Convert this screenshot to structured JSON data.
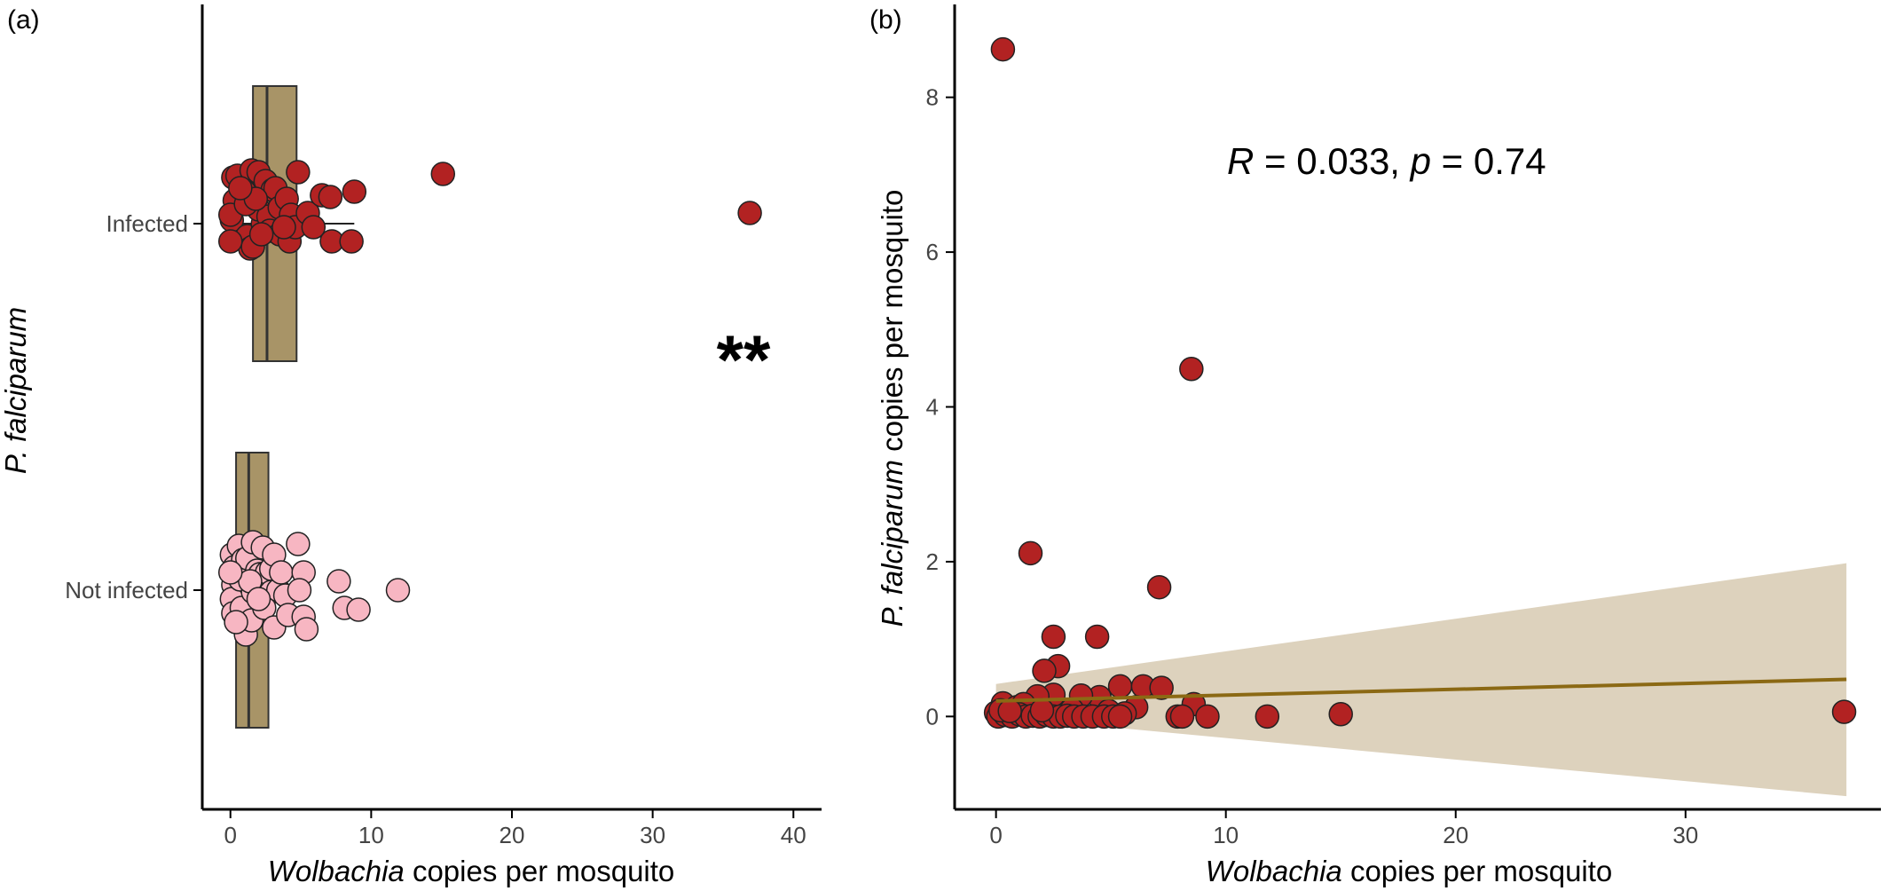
{
  "panel_a": {
    "label": "(a)",
    "xlabel_italic": "Wolbachia",
    "xlabel_rest": " copies per mosquito",
    "ylabel": "P. falciparum",
    "significance": "**"
  },
  "panel_b": {
    "label": "(b)",
    "xlabel_italic": "Wolbachia",
    "xlabel_rest": " copies per mosquito",
    "ylabel_italic": "P. falciparum",
    "ylabel_rest": " copies per mosquito",
    "annotation": {
      "r_symbol": "R",
      "r_text": " = 0.033, ",
      "p_symbol": "p",
      "p_text": " = 0.74"
    }
  },
  "colors": {
    "infected": "#b22222",
    "not_infected": "#f7b6c2",
    "box_fill": "#a89467",
    "regression_line": "#8b6914",
    "confidence_band": "#ddd2bd"
  },
  "chart_data": [
    {
      "type": "box-jitter",
      "orientation": "horizontal",
      "xlabel": "Wolbachia copies per mosquito",
      "ylabel": "P. falciparum",
      "xlim": [
        -2,
        42
      ],
      "xticks": [
        0,
        10,
        20,
        30,
        40
      ],
      "categories": [
        "Infected",
        "Not infected"
      ],
      "grid": false,
      "annotation": "**",
      "groups": [
        {
          "category": "Infected",
          "color": "#b22222",
          "box": {
            "q1": 1.6,
            "median": 2.6,
            "q3": 4.7,
            "whisker_low": 0,
            "whisker_high": 8.8
          },
          "points": [
            [
              0.2,
              0.26
            ],
            [
              0.3,
              0.13
            ],
            [
              0.5,
              0.27
            ],
            [
              0.1,
              0.02
            ],
            [
              0.0,
              0.05
            ],
            [
              1.0,
              0.18
            ],
            [
              1.5,
              0.3
            ],
            [
              1.2,
              -0.07
            ],
            [
              1.4,
              -0.14
            ],
            [
              1.6,
              -0.13
            ],
            [
              2.0,
              0.29
            ],
            [
              2.3,
              0.0
            ],
            [
              2.0,
              0.08
            ],
            [
              2.5,
              0.24
            ],
            [
              2.7,
              0.04
            ],
            [
              3.0,
              0.19
            ],
            [
              3.2,
              0.2
            ],
            [
              3.5,
              0.09
            ],
            [
              2.8,
              -0.04
            ],
            [
              3.5,
              -0.06
            ],
            [
              4.0,
              0.14
            ],
            [
              4.3,
              0.05
            ],
            [
              4.2,
              -0.1
            ],
            [
              4.6,
              -0.02
            ],
            [
              4.8,
              0.29
            ],
            [
              5.5,
              0.06
            ],
            [
              5.9,
              -0.02
            ],
            [
              6.5,
              0.16
            ],
            [
              7.1,
              0.15
            ],
            [
              7.2,
              -0.1
            ],
            [
              8.8,
              0.18
            ],
            [
              8.6,
              -0.1
            ],
            [
              1.1,
              0.11
            ],
            [
              1.8,
              0.14
            ],
            [
              0.0,
              -0.1
            ],
            [
              3.8,
              -0.02
            ],
            [
              2.2,
              -0.06
            ],
            [
              0.7,
              0.2
            ],
            [
              15.1,
              0.28
            ],
            [
              36.9,
              0.06
            ]
          ]
        },
        {
          "category": "Not infected",
          "color": "#f7b6c2",
          "box": {
            "q1": 0.4,
            "median": 1.3,
            "q3": 2.7,
            "whisker_low": 0,
            "whisker_high": 5.4
          },
          "points": [
            [
              0.1,
              0.2
            ],
            [
              0.3,
              0.13
            ],
            [
              0.2,
              0.03
            ],
            [
              0.1,
              -0.05
            ],
            [
              0.2,
              -0.13
            ],
            [
              0.6,
              0.25
            ],
            [
              0.9,
              0.17
            ],
            [
              0.7,
              0.06
            ],
            [
              0.8,
              -0.1
            ],
            [
              1.1,
              -0.25
            ],
            [
              1.2,
              0.18
            ],
            [
              1.6,
              0.27
            ],
            [
              1.9,
              0.11
            ],
            [
              1.6,
              -0.01
            ],
            [
              1.5,
              -0.17
            ],
            [
              2.1,
              0.09
            ],
            [
              2.3,
              0.24
            ],
            [
              2.6,
              0.1
            ],
            [
              2.9,
              0.12
            ],
            [
              3.1,
              0.2
            ],
            [
              2.9,
              -0.01
            ],
            [
              2.4,
              -0.1
            ],
            [
              3.1,
              -0.21
            ],
            [
              3.4,
              0.0
            ],
            [
              3.6,
              0.1
            ],
            [
              3.9,
              -0.03
            ],
            [
              4.1,
              -0.14
            ],
            [
              4.8,
              0.26
            ],
            [
              5.2,
              0.1
            ],
            [
              4.9,
              0.0
            ],
            [
              5.2,
              -0.15
            ],
            [
              5.4,
              -0.22
            ],
            [
              0.4,
              -0.18
            ],
            [
              1.4,
              0.05
            ],
            [
              7.7,
              0.05
            ],
            [
              8.1,
              -0.1
            ],
            [
              9.1,
              -0.11
            ],
            [
              11.9,
              0.0
            ],
            [
              0.0,
              0.1
            ],
            [
              2.0,
              -0.05
            ]
          ]
        }
      ]
    },
    {
      "type": "scatter",
      "xlabel": "Wolbachia copies per mosquito",
      "ylabel": "P. falciparum copies per mosquito",
      "xlim": [
        -1.8,
        38.5
      ],
      "ylim": [
        -1.2,
        9.2
      ],
      "xticks": [
        0,
        10,
        20,
        30
      ],
      "yticks": [
        0,
        2,
        4,
        6,
        8
      ],
      "grid": false,
      "annotation": "R = 0.033, p = 0.74",
      "points": [
        [
          0.3,
          8.62
        ],
        [
          8.5,
          4.49
        ],
        [
          1.5,
          2.11
        ],
        [
          7.1,
          1.67
        ],
        [
          2.5,
          1.03
        ],
        [
          4.4,
          1.03
        ],
        [
          2.7,
          0.65
        ],
        [
          2.1,
          0.59
        ],
        [
          5.4,
          0.39
        ],
        [
          6.4,
          0.39
        ],
        [
          7.2,
          0.37
        ],
        [
          4.5,
          0.25
        ],
        [
          3.7,
          0.27
        ],
        [
          2.5,
          0.28
        ],
        [
          1.8,
          0.26
        ],
        [
          8.6,
          0.16
        ],
        [
          0.3,
          0.17
        ],
        [
          0.9,
          0.12
        ],
        [
          1.2,
          0.16
        ],
        [
          6.1,
          0.12
        ],
        [
          3.3,
          0.09
        ],
        [
          4.9,
          0.07
        ],
        [
          5.6,
          0.04
        ],
        [
          0.0,
          0.05
        ],
        [
          0.1,
          0.0
        ],
        [
          0.4,
          0.02
        ],
        [
          0.7,
          0.0
        ],
        [
          1.0,
          0.03
        ],
        [
          1.3,
          0.0
        ],
        [
          1.6,
          0.01
        ],
        [
          1.9,
          0.0
        ],
        [
          2.2,
          0.02
        ],
        [
          2.5,
          0.0
        ],
        [
          2.8,
          0.0
        ],
        [
          3.1,
          0.01
        ],
        [
          3.4,
          0.0
        ],
        [
          3.8,
          0.0
        ],
        [
          4.2,
          0.0
        ],
        [
          4.7,
          0.0
        ],
        [
          5.1,
          0.0
        ],
        [
          5.4,
          0.0
        ],
        [
          7.9,
          0.0
        ],
        [
          8.1,
          0.0
        ],
        [
          9.2,
          0.0
        ],
        [
          11.8,
          0.0
        ],
        [
          15.0,
          0.03
        ],
        [
          36.9,
          0.06
        ],
        [
          0.2,
          0.08
        ],
        [
          2.0,
          0.08
        ],
        [
          0.6,
          0.07
        ]
      ],
      "regression": {
        "x": [
          0,
          37
        ],
        "y": [
          0.2,
          0.48
        ]
      },
      "confidence_band": {
        "x": [
          0,
          37
        ],
        "lower": [
          0.0,
          -1.03
        ],
        "upper": [
          0.42,
          1.98
        ]
      }
    }
  ]
}
